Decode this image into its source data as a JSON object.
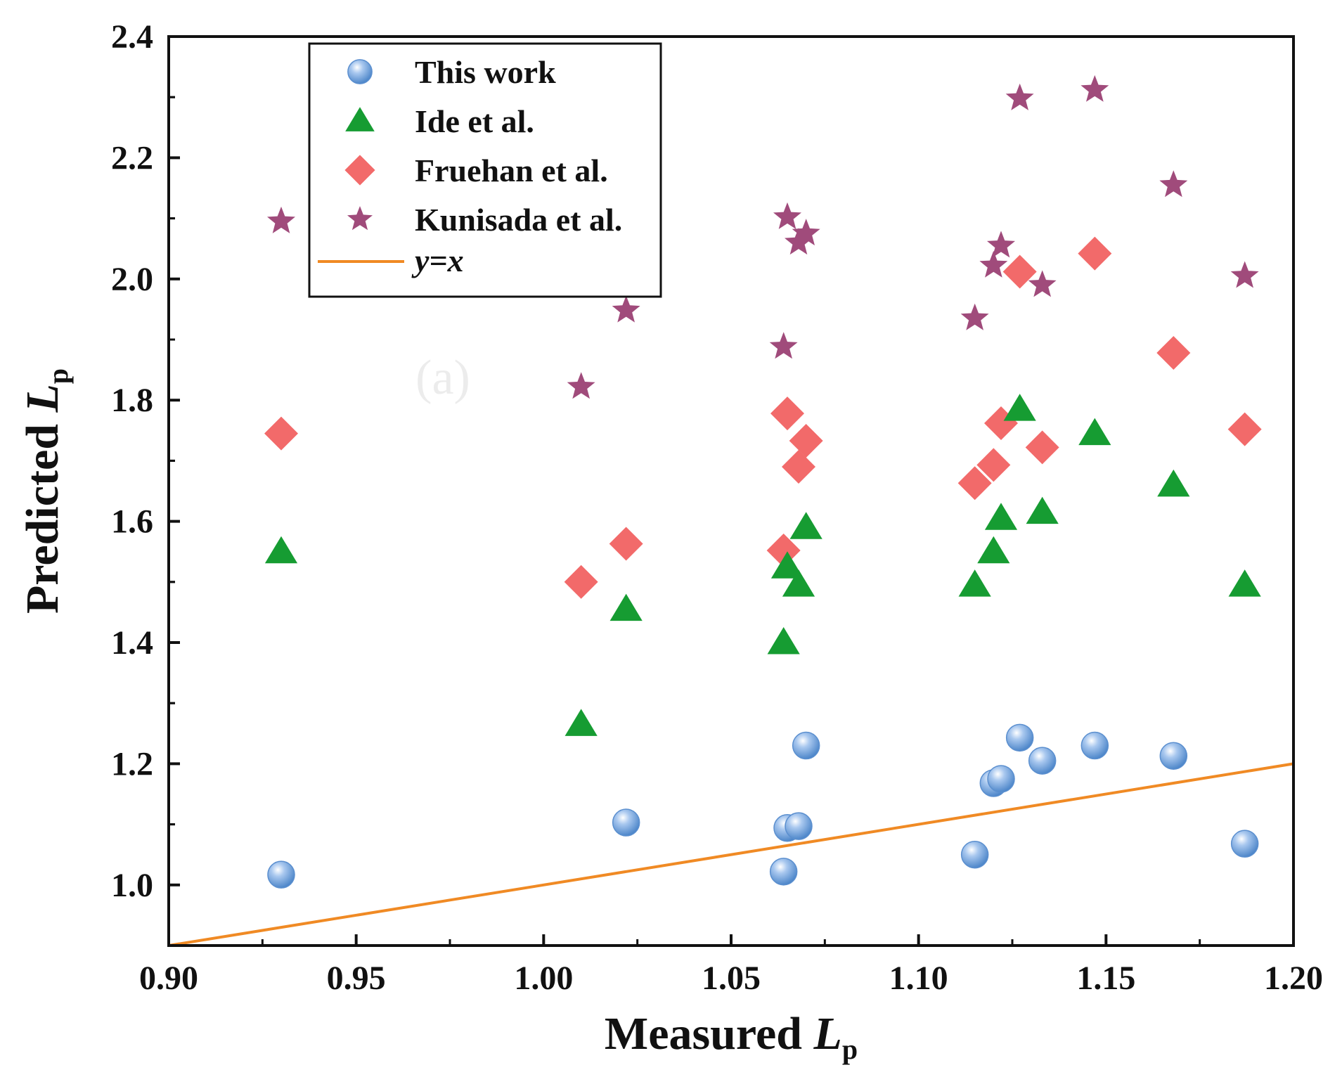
{
  "chart_data": {
    "type": "scatter",
    "title": "",
    "xlabel": {
      "main": "Measured ",
      "italic": "L",
      "sub": "p"
    },
    "ylabel": {
      "main": "Predicted ",
      "italic": "L",
      "sub": "p"
    },
    "xlim": [
      0.9,
      1.2
    ],
    "ylim": [
      0.9,
      2.4
    ],
    "xticks": [
      "0.90",
      "0.95",
      "1.00",
      "1.05",
      "1.10",
      "1.15",
      "1.20"
    ],
    "yticks": [
      "1.0",
      "1.2",
      "1.4",
      "1.6",
      "1.8",
      "2.0",
      "2.2",
      "2.4"
    ],
    "legend_position": "top-left",
    "faint_annotation": "(a)",
    "series": [
      {
        "name": "This work",
        "marker": "circle",
        "color": "#6a9fd8",
        "x": [
          0.93,
          1.022,
          1.064,
          1.065,
          1.068,
          1.07,
          1.115,
          1.12,
          1.122,
          1.127,
          1.133,
          1.147,
          1.168,
          1.187
        ],
        "y": [
          1.017,
          1.103,
          1.022,
          1.094,
          1.097,
          1.23,
          1.05,
          1.168,
          1.175,
          1.243,
          1.205,
          1.23,
          1.213,
          1.068
        ]
      },
      {
        "name": "Ide et al.",
        "marker": "triangle",
        "color": "#169c32",
        "x": [
          0.93,
          1.01,
          1.022,
          1.064,
          1.065,
          1.068,
          1.07,
          1.115,
          1.12,
          1.122,
          1.127,
          1.133,
          1.147,
          1.168,
          1.187
        ],
        "y": [
          1.55,
          1.265,
          1.455,
          1.4,
          1.525,
          1.495,
          1.59,
          1.495,
          1.55,
          1.605,
          1.785,
          1.615,
          1.745,
          1.66,
          1.495
        ]
      },
      {
        "name": "Fruehan et al.",
        "marker": "diamond",
        "color": "#f26a6a",
        "x": [
          0.93,
          1.01,
          1.022,
          1.064,
          1.065,
          1.068,
          1.07,
          1.115,
          1.12,
          1.122,
          1.127,
          1.133,
          1.147,
          1.168,
          1.187
        ],
        "y": [
          1.745,
          1.5,
          1.563,
          1.552,
          1.778,
          1.69,
          1.733,
          1.663,
          1.693,
          1.762,
          2.012,
          1.722,
          2.042,
          1.878,
          1.752
        ]
      },
      {
        "name": "Kunisada et al.",
        "marker": "star",
        "color": "#a04b7b",
        "x": [
          0.93,
          1.01,
          1.022,
          1.064,
          1.065,
          1.068,
          1.07,
          1.115,
          1.12,
          1.122,
          1.127,
          1.133,
          1.147,
          1.168,
          1.187
        ],
        "y": [
          2.095,
          1.822,
          1.948,
          1.888,
          2.102,
          2.06,
          2.075,
          1.935,
          2.022,
          2.055,
          2.298,
          1.99,
          2.312,
          2.155,
          2.005
        ]
      }
    ],
    "reference_line": {
      "name": "y=x",
      "color": "#f08a24",
      "from": [
        0.9,
        0.9
      ],
      "to": [
        1.2,
        1.2
      ]
    }
  }
}
